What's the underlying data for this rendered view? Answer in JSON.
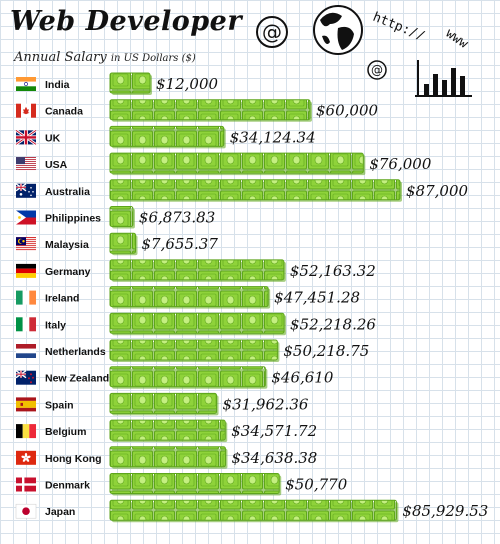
{
  "title": "Web Developer",
  "subtitle_main": "Annual Salary",
  "subtitle_unit": "in US Dollars ($)",
  "chart_data": {
    "type": "bar",
    "orientation": "horizontal",
    "title": "Web Developer",
    "subtitle": "Annual Salary in US Dollars ($)",
    "xlabel": "",
    "ylabel": "",
    "xlim": [
      0,
      90000
    ],
    "grid": true,
    "categories": [
      "India",
      "Canada",
      "UK",
      "USA",
      "Australia",
      "Philippines",
      "Malaysia",
      "Germany",
      "Ireland",
      "Italy",
      "Netherlands",
      "New Zealand",
      "Spain",
      "Belgium",
      "Hong Kong",
      "Denmark",
      "Japan"
    ],
    "values": [
      12000,
      60000,
      34124.34,
      76000,
      87000,
      6873.83,
      7655.37,
      52163.32,
      47451.28,
      52218.26,
      50218.75,
      46610,
      31962.36,
      34571.72,
      34638.38,
      50770,
      85929.53
    ],
    "value_labels": [
      "$12,000",
      "$60,000",
      "$34,124.34",
      "$76,000",
      "$87,000",
      "$6,873.83",
      "$7,655.37",
      "$52,163.32",
      "$47,451.28",
      "$52,218.26",
      "$50,218.75",
      "$46,610",
      "$31,962.36",
      "$34,571.72",
      "$34,638.38",
      "$50,770",
      "$85,929.53"
    ],
    "flags": [
      "india-flag-icon",
      "canada-flag-icon",
      "uk-flag-icon",
      "usa-flag-icon",
      "australia-flag-icon",
      "philippines-flag-icon",
      "malaysia-flag-icon",
      "germany-flag-icon",
      "ireland-flag-icon",
      "italy-flag-icon",
      "netherlands-flag-icon",
      "new-zealand-flag-icon",
      "spain-flag-icon",
      "belgium-flag-icon",
      "hong-kong-flag-icon",
      "denmark-flag-icon",
      "japan-flag-icon"
    ],
    "bar_style": "stacked-dollar-bills",
    "colors": {
      "bill": "#8fd33a",
      "bill_dark": "#5ea51c",
      "bill_light": "#c4ef80"
    }
  },
  "doodles": [
    "at-sign-icon",
    "globe-icon",
    "http-text-icon",
    "www-text-icon",
    "at-sign-small-icon",
    "bar-chart-doodle-icon"
  ],
  "doodle_text": {
    "http": "http://",
    "www": "www"
  }
}
